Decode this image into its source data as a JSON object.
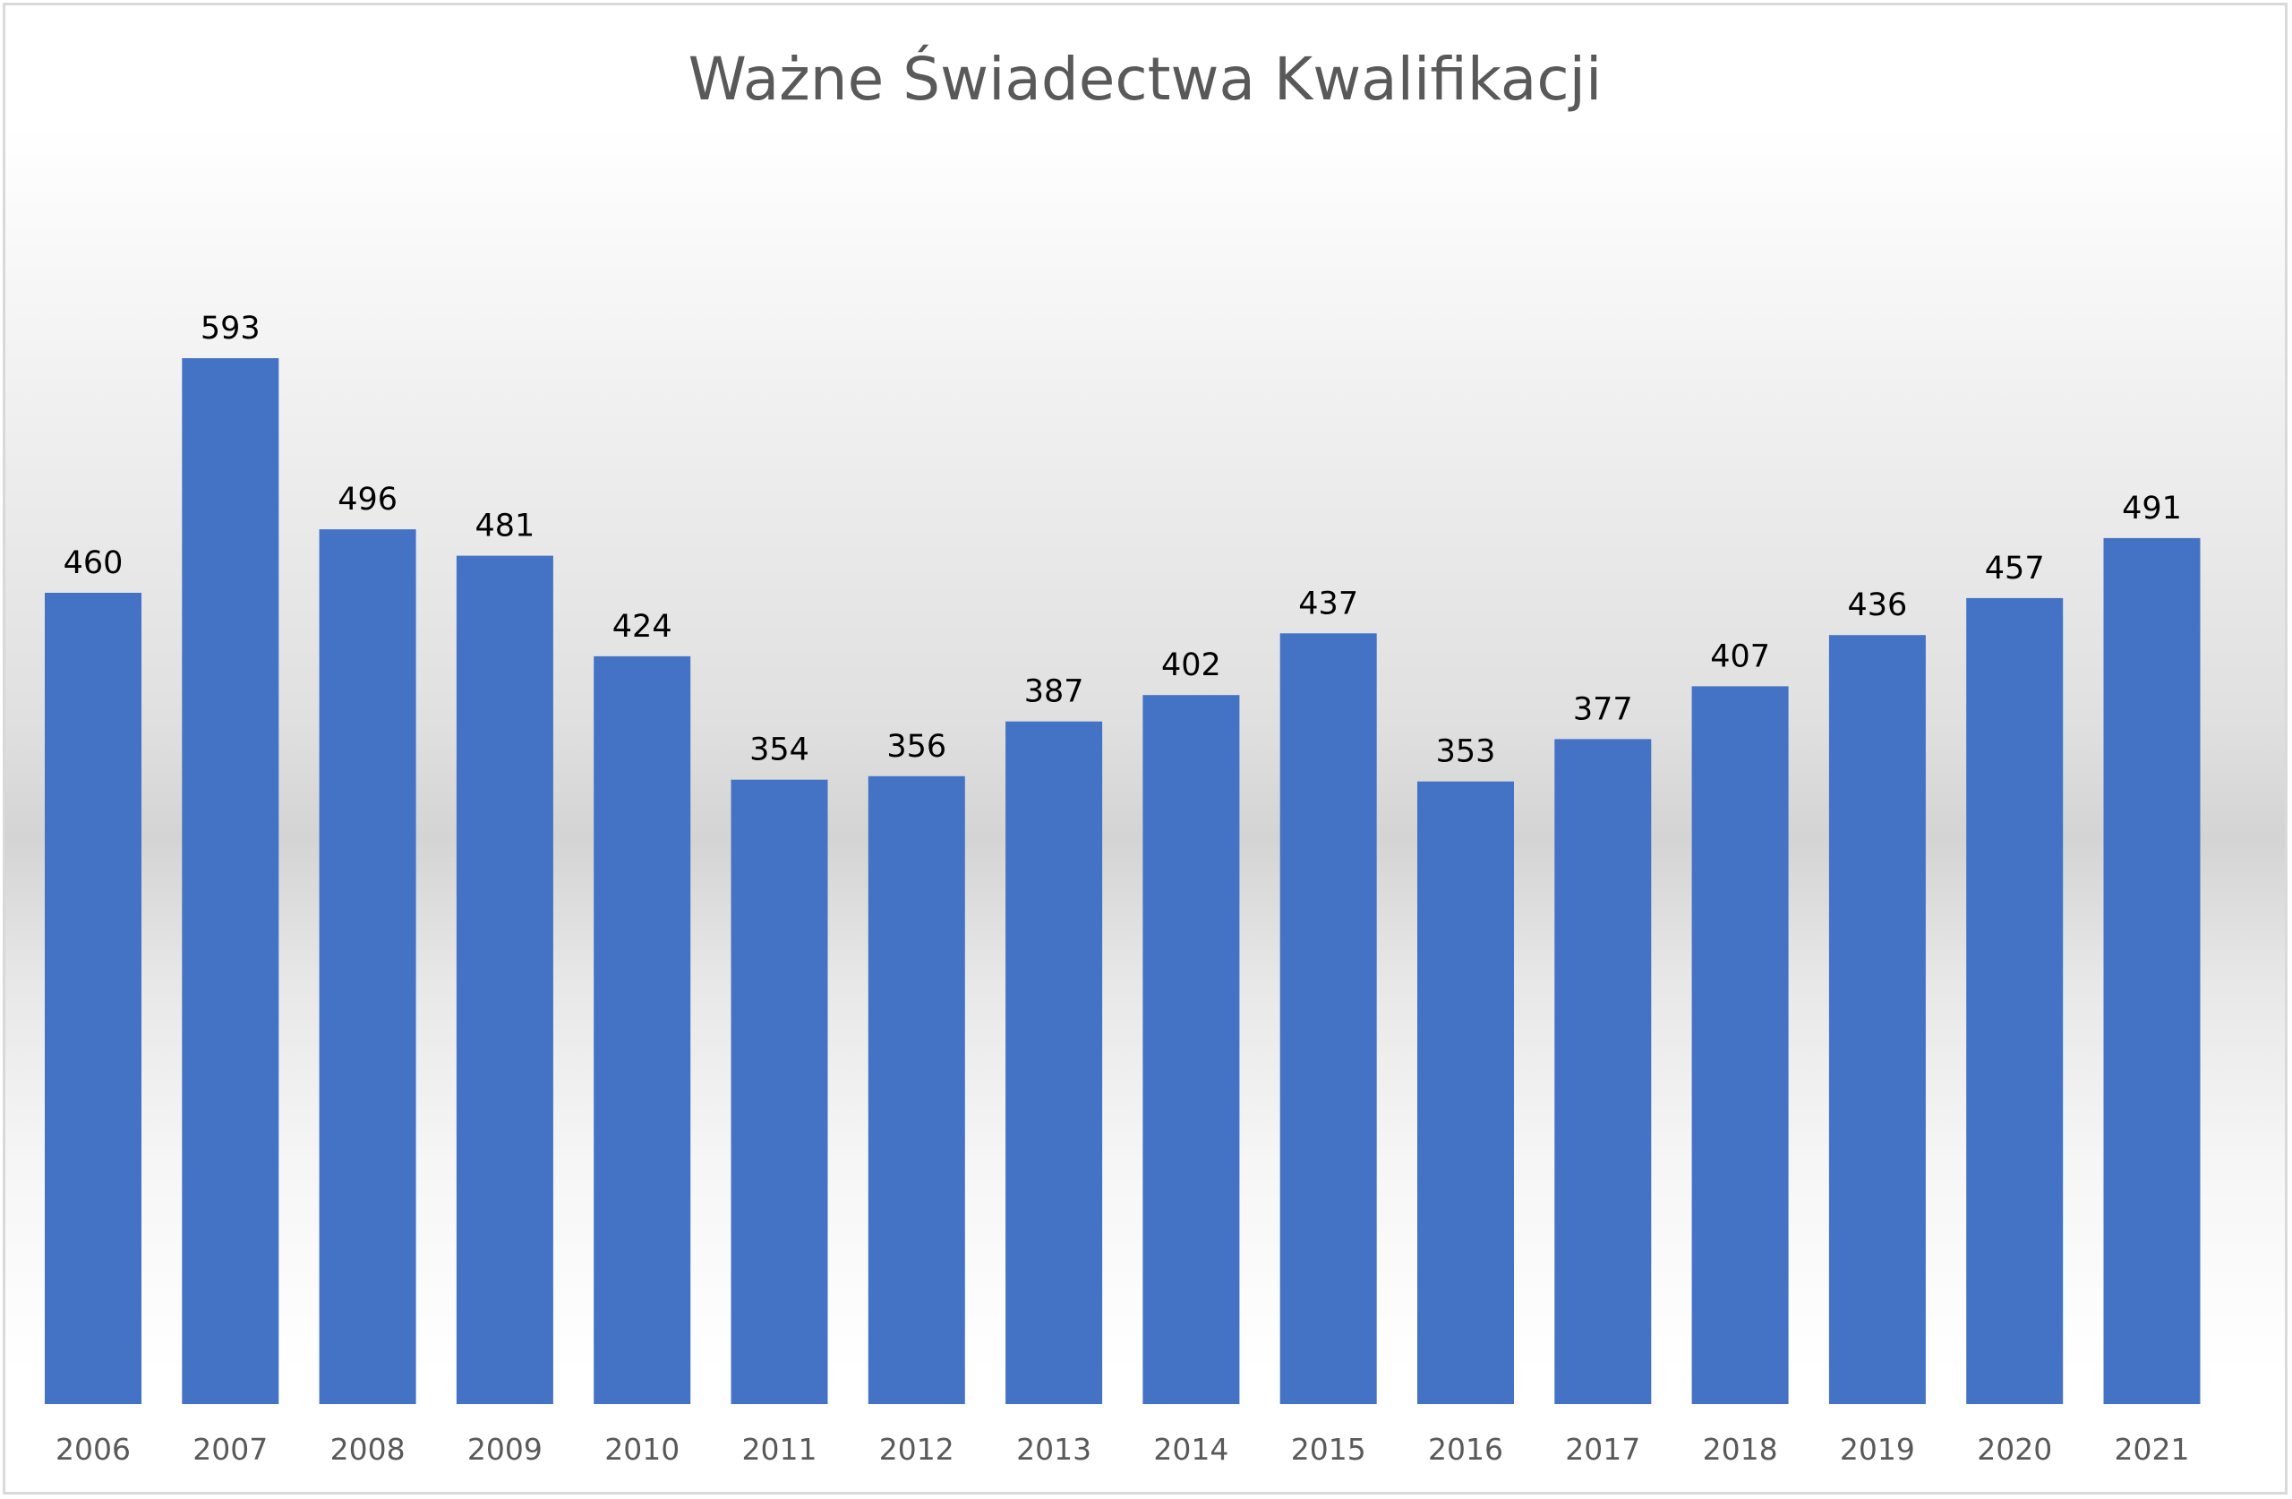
{
  "chart_data": {
    "type": "bar",
    "title": "Ważne Świadectwa Kwalifikacji",
    "xlabel": "",
    "ylabel": "",
    "categories": [
      "2006",
      "2007",
      "2008",
      "2009",
      "2010",
      "2011",
      "2012",
      "2013",
      "2014",
      "2015",
      "2016",
      "2017",
      "2018",
      "2019",
      "2020",
      "2021"
    ],
    "values": [
      460,
      593,
      496,
      481,
      424,
      354,
      356,
      387,
      402,
      437,
      353,
      377,
      407,
      436,
      457,
      491
    ],
    "ylim": [
      0,
      800
    ],
    "grid": false,
    "legend": "none",
    "bar_color": "#4472c4",
    "title_color": "#595959"
  }
}
